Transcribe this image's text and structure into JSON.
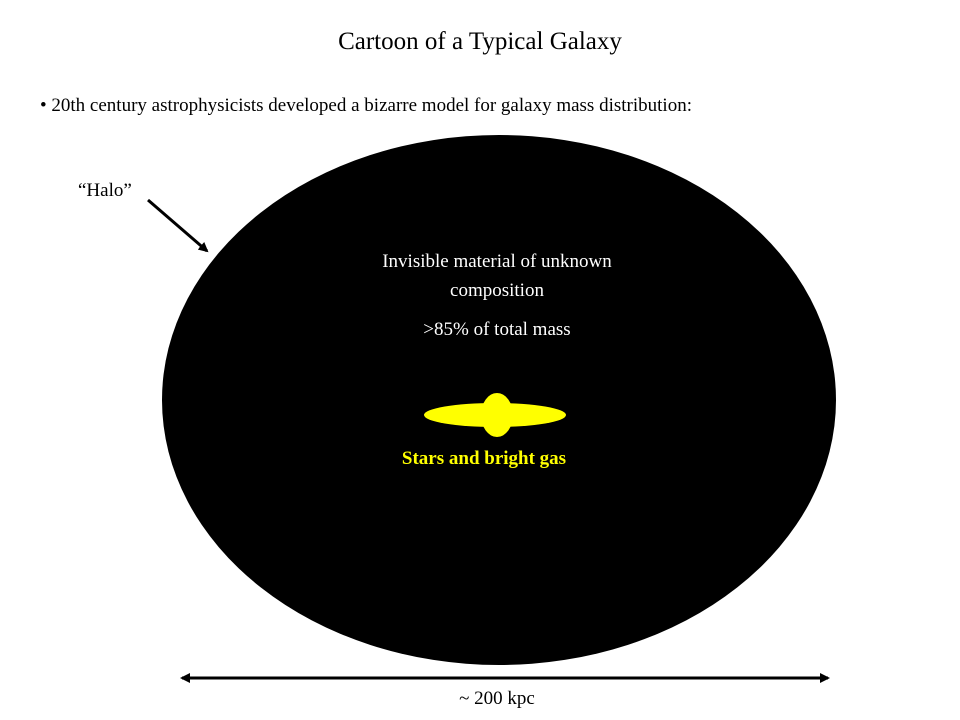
{
  "header": {
    "title": "Cartoon of a Typical Galaxy"
  },
  "bullets": [
    "20th century astrophysicists  developed a bizarre model for galaxy mass distribution:"
  ],
  "diagram": {
    "halo_label": "“Halo”",
    "halo_description": "Invisible material of unknown composition",
    "halo_mass": ">85% of total mass",
    "disk_label": "Stars and bright gas",
    "scale_label": "~ 200 kpc"
  }
}
